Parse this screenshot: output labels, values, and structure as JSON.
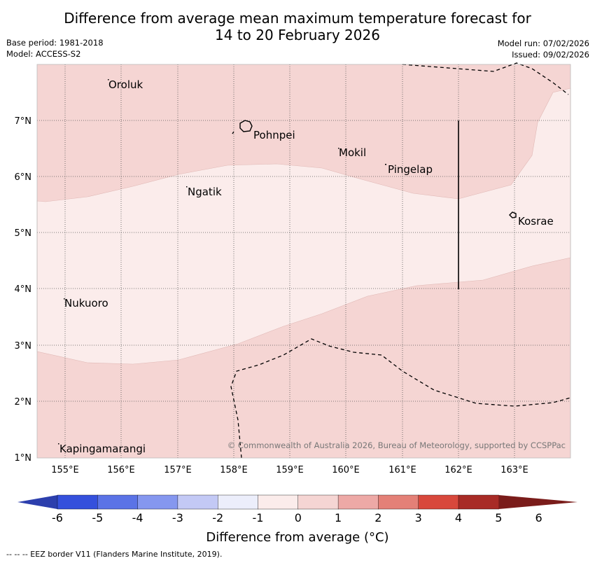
{
  "title_line1": "Difference from average mean maximum temperature forecast for",
  "title_line2": "14 to 20 February 2026",
  "base_period": "Base period: 1981-2018",
  "model": "Model: ACCESS-S2",
  "model_run": "Model run: 07/02/2026",
  "issued": "Issued: 09/02/2026",
  "copyright": "© Commonwealth of Australia 2026, Bureau of Meteorology, supported by CCSPPac",
  "lon_labels": [
    "155°E",
    "156°E",
    "157°E",
    "158°E",
    "159°E",
    "160°E",
    "161°E",
    "162°E",
    "163°E"
  ],
  "lat_labels": [
    "7°N",
    "6°N",
    "5°N",
    "4°N",
    "3°N",
    "2°N",
    "1°N"
  ],
  "places": [
    {
      "name": "Oroluk",
      "lon": 155.6,
      "lat": 7.65
    },
    {
      "name": "Pohnpei",
      "lon": 158.2,
      "lat": 6.85
    },
    {
      "name": "Mokil",
      "lon": 159.75,
      "lat": 6.42
    },
    {
      "name": "Pingelap",
      "lon": 160.7,
      "lat": 6.2
    },
    {
      "name": "Ngatik",
      "lon": 157.15,
      "lat": 5.8
    },
    {
      "name": "Kosrae",
      "lon": 162.95,
      "lat": 5.3
    },
    {
      "name": "Nukuoro",
      "lon": 154.8,
      "lat": 3.82
    },
    {
      "name": "Kapingamarangi",
      "lon": 154.9,
      "lat": 1.25
    }
  ],
  "colorbar": {
    "ticks": [
      "-6",
      "-5",
      "-4",
      "-3",
      "-2",
      "-1",
      "0",
      "1",
      "2",
      "3",
      "4",
      "5",
      "6"
    ],
    "colors": [
      "#2c3fad",
      "#3550dc",
      "#5b73e6",
      "#8597ef",
      "#c3c9f5",
      "#eceefb",
      "#fbeceb",
      "#f5d5d3",
      "#eda9a6",
      "#e48077",
      "#d8483c",
      "#a82b26",
      "#7a1c1a"
    ],
    "title": "Difference from average (°C)"
  },
  "legend_note": "--  --  -- EEZ border V11 (Flanders Marine Institute, 2019).",
  "zone_colors": {
    "warm_1_2": "#f5d5d3",
    "warm_0_1": "#fbeceb"
  }
}
